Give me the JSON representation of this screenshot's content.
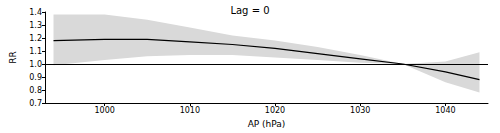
{
  "chart_data": {
    "type": "line",
    "title": "Lag = 0",
    "x_label": "AP (hPa)",
    "y_label": "RR",
    "x": [
      994,
      1000,
      1005,
      1010,
      1015,
      1020,
      1025,
      1030,
      1035,
      1040,
      1044
    ],
    "series": [
      {
        "values": [
          1.18,
          1.19,
          1.19,
          1.17,
          1.15,
          1.12,
          1.08,
          1.04,
          1.0,
          0.94,
          0.88
        ],
        "color": "#000000"
      }
    ],
    "band": {
      "lower": [
        0.99,
        1.03,
        1.06,
        1.07,
        1.07,
        1.05,
        1.03,
        1.01,
        1.0,
        0.86,
        0.78
      ],
      "upper": [
        1.38,
        1.38,
        1.34,
        1.28,
        1.22,
        1.18,
        1.13,
        1.07,
        1.0,
        1.02,
        1.09
      ],
      "color": "#d9d9d9"
    },
    "reference_line": 1,
    "xlim": [
      993,
      1045
    ],
    "xticks": [
      1000,
      1010,
      1020,
      1030,
      1040
    ],
    "ylim": [
      0.7,
      1.4
    ],
    "yticks": [
      0.7,
      0.8,
      0.9,
      {
        "value": 1,
        "label": "1.0"
      },
      1.1,
      1.2,
      1.3,
      1.4
    ],
    "grid": false
  }
}
